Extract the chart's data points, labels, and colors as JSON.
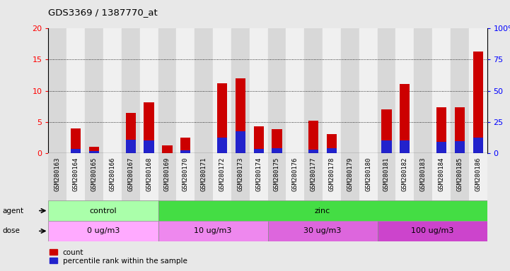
{
  "title": "GDS3369 / 1387770_at",
  "samples": [
    "GSM280163",
    "GSM280164",
    "GSM280165",
    "GSM280166",
    "GSM280167",
    "GSM280168",
    "GSM280169",
    "GSM280170",
    "GSM280171",
    "GSM280172",
    "GSM280173",
    "GSM280174",
    "GSM280175",
    "GSM280176",
    "GSM280177",
    "GSM280178",
    "GSM280179",
    "GSM280180",
    "GSM280181",
    "GSM280182",
    "GSM280183",
    "GSM280184",
    "GSM280185",
    "GSM280186"
  ],
  "count_values": [
    0.0,
    4.0,
    1.0,
    0.0,
    6.5,
    8.1,
    1.2,
    2.5,
    0.0,
    11.2,
    12.0,
    4.3,
    3.9,
    0.0,
    5.2,
    3.1,
    0.0,
    0.0,
    7.0,
    11.1,
    0.0,
    7.4,
    7.3,
    16.3
  ],
  "percentile_values_scaled": [
    0.0,
    0.7,
    0.3,
    0.0,
    2.2,
    2.0,
    0.0,
    0.5,
    0.0,
    2.5,
    3.5,
    0.7,
    0.8,
    0.0,
    0.6,
    0.8,
    0.0,
    0.0,
    2.0,
    2.0,
    0.0,
    1.8,
    1.9,
    2.5
  ],
  "bar_color_red": "#cc0000",
  "bar_color_blue": "#2222cc",
  "ylim_left": [
    0,
    20
  ],
  "ylim_right": [
    0,
    100
  ],
  "yticks_left": [
    0,
    5,
    10,
    15,
    20
  ],
  "yticks_right": [
    0,
    25,
    50,
    75,
    100
  ],
  "grid_values": [
    5,
    10,
    15
  ],
  "col_even_color": "#d8d8d8",
  "col_odd_color": "#f0f0f0",
  "agent_groups": [
    {
      "label": "control",
      "start": 0,
      "end": 6,
      "color": "#aaffaa"
    },
    {
      "label": "zinc",
      "start": 6,
      "end": 24,
      "color": "#44dd44"
    }
  ],
  "dose_groups": [
    {
      "label": "0 ug/m3",
      "start": 0,
      "end": 6,
      "color": "#ffaaff"
    },
    {
      "label": "10 ug/m3",
      "start": 6,
      "end": 12,
      "color": "#ee88ee"
    },
    {
      "label": "30 ug/m3",
      "start": 12,
      "end": 18,
      "color": "#dd66dd"
    },
    {
      "label": "100 ug/m3",
      "start": 18,
      "end": 24,
      "color": "#cc44cc"
    }
  ],
  "bg_color": "#e8e8e8",
  "plot_bg": "#ffffff",
  "legend_count_label": "count",
  "legend_pct_label": "percentile rank within the sample",
  "agent_label": "agent",
  "dose_label": "dose"
}
